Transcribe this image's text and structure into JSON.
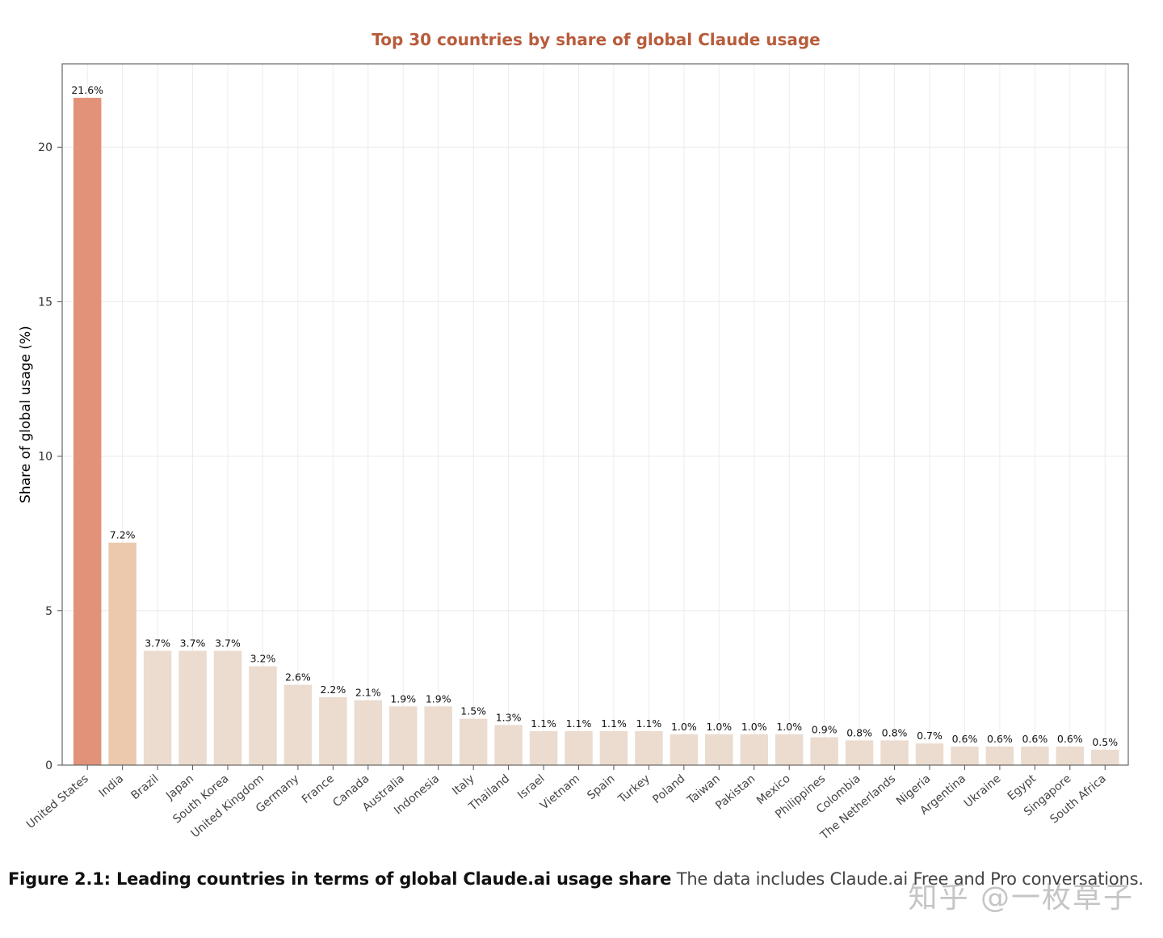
{
  "figure_caption": {
    "label": "Figure 2.1: Leading countries in terms of global Claude.ai usage share",
    "text": " The data includes Claude.ai Free and Pro conversations."
  },
  "watermark": "知乎 @一枚草子",
  "chart_data": {
    "type": "bar",
    "title": "Top 30 countries by share of global Claude usage",
    "xlabel": "",
    "ylabel": "Share of global usage (%)",
    "ylim": [
      0,
      22.7
    ],
    "yticks": [
      0,
      5,
      10,
      15,
      20
    ],
    "grid": true,
    "categories": [
      "United States",
      "India",
      "Brazil",
      "Japan",
      "South Korea",
      "United Kingdom",
      "Germany",
      "France",
      "Canada",
      "Australia",
      "Indonesia",
      "Italy",
      "Thailand",
      "Israel",
      "Vietnam",
      "Spain",
      "Turkey",
      "Poland",
      "Taiwan",
      "Pakistan",
      "Mexico",
      "Philippines",
      "Colombia",
      "The Netherlands",
      "Nigeria",
      "Argentina",
      "Ukraine",
      "Egypt",
      "Singapore",
      "South Africa"
    ],
    "values": [
      21.6,
      7.2,
      3.7,
      3.7,
      3.7,
      3.2,
      2.6,
      2.2,
      2.1,
      1.9,
      1.9,
      1.5,
      1.3,
      1.1,
      1.1,
      1.1,
      1.1,
      1.0,
      1.0,
      1.0,
      1.0,
      0.9,
      0.8,
      0.8,
      0.7,
      0.6,
      0.6,
      0.6,
      0.6,
      0.5
    ],
    "value_labels": [
      "21.6%",
      "7.2%",
      "3.7%",
      "3.7%",
      "3.7%",
      "3.2%",
      "2.6%",
      "2.2%",
      "2.1%",
      "1.9%",
      "1.9%",
      "1.5%",
      "1.3%",
      "1.1%",
      "1.1%",
      "1.1%",
      "1.1%",
      "1.0%",
      "1.0%",
      "1.0%",
      "1.0%",
      "0.9%",
      "0.8%",
      "0.8%",
      "0.7%",
      "0.6%",
      "0.6%",
      "0.6%",
      "0.6%",
      "0.5%"
    ],
    "colors": {
      "title": "#b85c3c",
      "max_bar": "#e3927a",
      "second_bar": "#ecc9ad",
      "other_bars": "#ebdccf",
      "grid": "#ececec",
      "frame": "#666666"
    }
  }
}
